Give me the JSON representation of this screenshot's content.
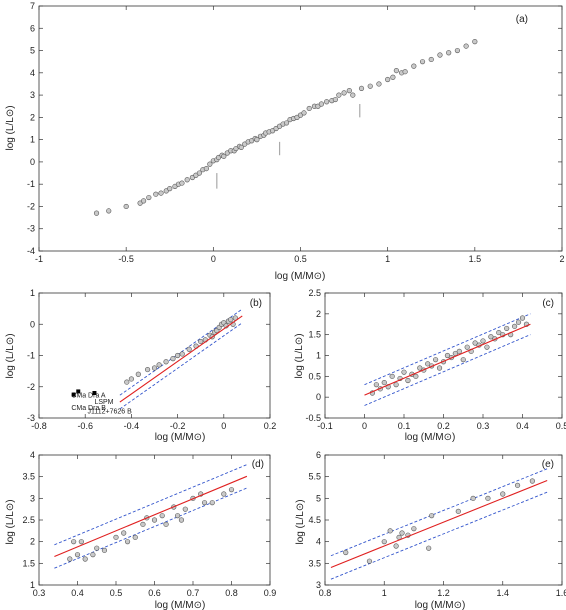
{
  "chart_data": [
    {
      "panel": "(a)",
      "type": "scatter",
      "xlabel": "log (M/M⊙)",
      "ylabel": "log (L/L⊙)",
      "xlim": [
        -1,
        2
      ],
      "ylim": [
        -4,
        7
      ],
      "xticks": [
        -1,
        -0.5,
        0,
        0.5,
        1,
        1.5,
        2
      ],
      "xtick_labels": [
        "-1",
        "-0.5",
        "0",
        "0.5",
        "1",
        "1.5",
        "2"
      ],
      "yticks": [
        -4,
        -3,
        -2,
        -1,
        0,
        1,
        2,
        3,
        4,
        5,
        6,
        7
      ],
      "ytick_labels": [
        "-4",
        "-3",
        "-2",
        "-1",
        "0",
        "1",
        "2",
        "3",
        "4",
        "5",
        "6",
        "7"
      ],
      "dividers": [
        [
          0.02,
          -0.5,
          -1.2
        ],
        [
          0.38,
          0.9,
          0.3
        ],
        [
          0.84,
          2.6,
          2.0
        ]
      ],
      "series": [
        {
          "points": [
            [
              -0.67,
              -2.3
            ],
            [
              -0.6,
              -2.2
            ],
            [
              -0.5,
              -2.0
            ],
            [
              -0.42,
              -1.85
            ],
            [
              -0.4,
              -1.75
            ],
            [
              -0.37,
              -1.6
            ],
            [
              -0.33,
              -1.45
            ],
            [
              -0.3,
              -1.4
            ],
            [
              -0.27,
              -1.3
            ],
            [
              -0.25,
              -1.2
            ],
            [
              -0.22,
              -1.1
            ],
            [
              -0.2,
              -1.0
            ],
            [
              -0.18,
              -0.95
            ],
            [
              -0.15,
              -0.8
            ],
            [
              -0.12,
              -0.7
            ],
            [
              -0.1,
              -0.6
            ],
            [
              -0.08,
              -0.5
            ],
            [
              -0.06,
              -0.35
            ],
            [
              -0.04,
              -0.3
            ],
            [
              -0.02,
              -0.1
            ],
            [
              0.0,
              0.05
            ],
            [
              0.02,
              0.1
            ],
            [
              0.03,
              0.2
            ],
            [
              0.05,
              0.3
            ],
            [
              0.06,
              0.25
            ],
            [
              0.08,
              0.4
            ],
            [
              0.1,
              0.5
            ],
            [
              0.12,
              0.5
            ],
            [
              0.13,
              0.6
            ],
            [
              0.15,
              0.7
            ],
            [
              0.16,
              0.65
            ],
            [
              0.18,
              0.8
            ],
            [
              0.2,
              0.9
            ],
            [
              0.22,
              0.95
            ],
            [
              0.24,
              1.05
            ],
            [
              0.25,
              1.0
            ],
            [
              0.27,
              1.15
            ],
            [
              0.29,
              1.2
            ],
            [
              0.3,
              1.3
            ],
            [
              0.32,
              1.35
            ],
            [
              0.34,
              1.4
            ],
            [
              0.36,
              1.5
            ],
            [
              0.38,
              1.6
            ],
            [
              0.4,
              1.7
            ],
            [
              0.42,
              1.75
            ],
            [
              0.44,
              1.9
            ],
            [
              0.46,
              1.95
            ],
            [
              0.48,
              2.0
            ],
            [
              0.5,
              2.1
            ],
            [
              0.52,
              2.2
            ],
            [
              0.55,
              2.4
            ],
            [
              0.58,
              2.5
            ],
            [
              0.6,
              2.5
            ],
            [
              0.62,
              2.6
            ],
            [
              0.65,
              2.7
            ],
            [
              0.68,
              2.75
            ],
            [
              0.7,
              2.8
            ],
            [
              0.72,
              3.0
            ],
            [
              0.75,
              3.1
            ],
            [
              0.78,
              3.2
            ],
            [
              0.8,
              3.0
            ],
            [
              0.85,
              3.3
            ],
            [
              0.9,
              3.4
            ],
            [
              0.95,
              3.5
            ],
            [
              1.0,
              3.7
            ],
            [
              1.03,
              3.8
            ],
            [
              1.05,
              4.1
            ],
            [
              1.08,
              4.0
            ],
            [
              1.1,
              4.05
            ],
            [
              1.15,
              4.3
            ],
            [
              1.2,
              4.5
            ],
            [
              1.25,
              4.6
            ],
            [
              1.3,
              4.8
            ],
            [
              1.35,
              4.9
            ],
            [
              1.4,
              5.0
            ],
            [
              1.45,
              5.2
            ],
            [
              1.5,
              5.4
            ]
          ]
        }
      ]
    },
    {
      "panel": "(b)",
      "type": "scatter",
      "xlabel": "log (M/M⊙)",
      "ylabel": "log (L/L⊙)",
      "xlim": [
        -0.8,
        0.2
      ],
      "ylim": [
        -3,
        1
      ],
      "xticks": [
        -0.8,
        -0.6,
        -0.4,
        -0.2,
        0,
        0.2
      ],
      "xtick_labels": [
        "-0.8",
        "-0.6",
        "-0.4",
        "-0.2",
        "0",
        "0.2"
      ],
      "yticks": [
        -3,
        -2,
        -1,
        0,
        1
      ],
      "ytick_labels": [
        "-3",
        "-2",
        "-1",
        "0",
        "1"
      ],
      "fit": {
        "slope": 5.2,
        "intercept": -0.15,
        "x_range": [
          -0.45,
          0.08
        ],
        "band": 0.22
      },
      "series": [
        {
          "points": [
            [
              -0.42,
              -1.85
            ],
            [
              -0.4,
              -1.75
            ],
            [
              -0.37,
              -1.6
            ],
            [
              -0.33,
              -1.45
            ],
            [
              -0.3,
              -1.4
            ],
            [
              -0.28,
              -1.3
            ],
            [
              -0.25,
              -1.2
            ],
            [
              -0.22,
              -1.1
            ],
            [
              -0.2,
              -1.0
            ],
            [
              -0.18,
              -0.95
            ],
            [
              -0.15,
              -0.8
            ],
            [
              -0.12,
              -0.7
            ],
            [
              -0.1,
              -0.55
            ],
            [
              -0.08,
              -0.5
            ],
            [
              -0.06,
              -0.35
            ],
            [
              -0.05,
              -0.4
            ],
            [
              -0.04,
              -0.25
            ],
            [
              -0.03,
              -0.2
            ],
            [
              -0.02,
              -0.1
            ],
            [
              -0.01,
              0.0
            ],
            [
              0.0,
              0.05
            ],
            [
              0.01,
              -0.05
            ],
            [
              0.02,
              0.1
            ],
            [
              0.03,
              0.15
            ],
            [
              0.04,
              0.0
            ],
            [
              0.05,
              0.2
            ]
          ]
        }
      ],
      "annotations": [
        {
          "text": "CMa Dra A",
          "x": -0.66,
          "y": -2.35,
          "mark": [
            -0.63,
            -2.15
          ]
        },
        {
          "text": "CMa Dra B",
          "x": -0.66,
          "y": -2.75,
          "mark": [
            -0.65,
            -2.25
          ]
        },
        {
          "text": "LSPM",
          "x": -0.56,
          "y": -2.55,
          "mark": [
            -0.56,
            -2.2
          ]
        },
        {
          "text": "J1112+7626 B",
          "x": -0.59,
          "y": -2.85
        }
      ]
    },
    {
      "panel": "(c)",
      "type": "scatter",
      "xlabel": "log (M/M⊙)",
      "ylabel": "log (L/L⊙)",
      "xlim": [
        -0.1,
        0.5
      ],
      "ylim": [
        -0.5,
        2.5
      ],
      "xticks": [
        -0.1,
        0,
        0.1,
        0.2,
        0.3,
        0.4,
        0.5
      ],
      "xtick_labels": [
        "-0.1",
        "0",
        "0.1",
        "0.2",
        "0.3",
        "0.4",
        "0.5"
      ],
      "yticks": [
        -0.5,
        0,
        0.5,
        1,
        1.5,
        2,
        2.5
      ],
      "ytick_labels": [
        "-0.5",
        "0",
        "0.5",
        "1",
        "1.5",
        "2",
        "2.5"
      ],
      "fit": {
        "slope": 4.05,
        "intercept": 0.05,
        "x_range": [
          0.0,
          0.42
        ],
        "band": 0.25
      },
      "series": [
        {
          "points": [
            [
              0.02,
              0.1
            ],
            [
              0.03,
              0.3
            ],
            [
              0.04,
              0.2
            ],
            [
              0.05,
              0.35
            ],
            [
              0.06,
              0.25
            ],
            [
              0.07,
              0.5
            ],
            [
              0.08,
              0.3
            ],
            [
              0.09,
              0.45
            ],
            [
              0.1,
              0.6
            ],
            [
              0.11,
              0.4
            ],
            [
              0.12,
              0.55
            ],
            [
              0.13,
              0.5
            ],
            [
              0.14,
              0.7
            ],
            [
              0.15,
              0.65
            ],
            [
              0.16,
              0.8
            ],
            [
              0.17,
              0.75
            ],
            [
              0.18,
              0.9
            ],
            [
              0.19,
              0.7
            ],
            [
              0.2,
              0.85
            ],
            [
              0.21,
              1.0
            ],
            [
              0.22,
              0.95
            ],
            [
              0.23,
              1.05
            ],
            [
              0.24,
              1.1
            ],
            [
              0.25,
              0.9
            ],
            [
              0.26,
              1.2
            ],
            [
              0.27,
              1.1
            ],
            [
              0.28,
              1.3
            ],
            [
              0.29,
              1.25
            ],
            [
              0.3,
              1.35
            ],
            [
              0.31,
              1.2
            ],
            [
              0.32,
              1.45
            ],
            [
              0.33,
              1.4
            ],
            [
              0.34,
              1.55
            ],
            [
              0.35,
              1.5
            ],
            [
              0.36,
              1.65
            ],
            [
              0.37,
              1.5
            ],
            [
              0.38,
              1.7
            ],
            [
              0.39,
              1.8
            ],
            [
              0.4,
              1.9
            ],
            [
              0.41,
              1.75
            ]
          ]
        }
      ]
    },
    {
      "panel": "(d)",
      "type": "scatter",
      "xlabel": "log (M/M⊙)",
      "ylabel": "log (L/L⊙)",
      "xlim": [
        0.3,
        0.9
      ],
      "ylim": [
        1,
        4
      ],
      "xticks": [
        0.3,
        0.4,
        0.5,
        0.6,
        0.7,
        0.8,
        0.9
      ],
      "xtick_labels": [
        "0.3",
        "0.4",
        "0.5",
        "0.6",
        "0.7",
        "0.8",
        "0.9"
      ],
      "yticks": [
        1,
        1.5,
        2,
        2.5,
        3,
        3.5,
        4
      ],
      "ytick_labels": [
        "1",
        "1.5",
        "2",
        "2.5",
        "3",
        "3.5",
        "4"
      ],
      "fit": {
        "slope": 3.7,
        "intercept": 0.4,
        "x_range": [
          0.34,
          0.84
        ],
        "band": 0.27
      },
      "series": [
        {
          "points": [
            [
              0.38,
              1.6
            ],
            [
              0.39,
              2.0
            ],
            [
              0.4,
              1.7
            ],
            [
              0.41,
              2.0
            ],
            [
              0.42,
              1.6
            ],
            [
              0.44,
              1.7
            ],
            [
              0.45,
              1.85
            ],
            [
              0.47,
              1.8
            ],
            [
              0.5,
              2.1
            ],
            [
              0.52,
              2.2
            ],
            [
              0.53,
              2.0
            ],
            [
              0.55,
              2.1
            ],
            [
              0.57,
              2.4
            ],
            [
              0.58,
              2.55
            ],
            [
              0.6,
              2.5
            ],
            [
              0.62,
              2.6
            ],
            [
              0.63,
              2.4
            ],
            [
              0.65,
              2.8
            ],
            [
              0.66,
              2.6
            ],
            [
              0.67,
              2.5
            ],
            [
              0.68,
              2.75
            ],
            [
              0.7,
              3.0
            ],
            [
              0.72,
              3.1
            ],
            [
              0.73,
              2.9
            ],
            [
              0.75,
              2.9
            ],
            [
              0.78,
              3.1
            ],
            [
              0.8,
              3.2
            ]
          ]
        }
      ]
    },
    {
      "panel": "(e)",
      "type": "scatter",
      "xlabel": "log (M/M⊙)",
      "ylabel": "log (L/L⊙)",
      "xlim": [
        0.8,
        1.6
      ],
      "ylim": [
        3,
        6
      ],
      "xticks": [
        0.8,
        1,
        1.2,
        1.4,
        1.6
      ],
      "xtick_labels": [
        "0.8",
        "1",
        "1.2",
        "1.4",
        "1.6"
      ],
      "yticks": [
        3,
        3.5,
        4,
        4.5,
        5,
        5.5,
        6
      ],
      "ytick_labels": [
        "3",
        "3.5",
        "4",
        "4.5",
        "5",
        "5.5",
        "6"
      ],
      "fit": {
        "slope": 2.75,
        "intercept": 1.15,
        "x_range": [
          0.82,
          1.55
        ],
        "band": 0.27
      },
      "series": [
        {
          "points": [
            [
              0.87,
              3.75
            ],
            [
              0.95,
              3.55
            ],
            [
              1.0,
              4.0
            ],
            [
              1.02,
              4.25
            ],
            [
              1.04,
              3.9
            ],
            [
              1.05,
              4.1
            ],
            [
              1.06,
              4.2
            ],
            [
              1.08,
              4.15
            ],
            [
              1.1,
              4.3
            ],
            [
              1.15,
              3.85
            ],
            [
              1.16,
              4.6
            ],
            [
              1.25,
              4.7
            ],
            [
              1.3,
              5.0
            ],
            [
              1.35,
              5.0
            ],
            [
              1.4,
              5.1
            ],
            [
              1.45,
              5.3
            ],
            [
              1.5,
              5.4
            ]
          ]
        }
      ]
    }
  ]
}
